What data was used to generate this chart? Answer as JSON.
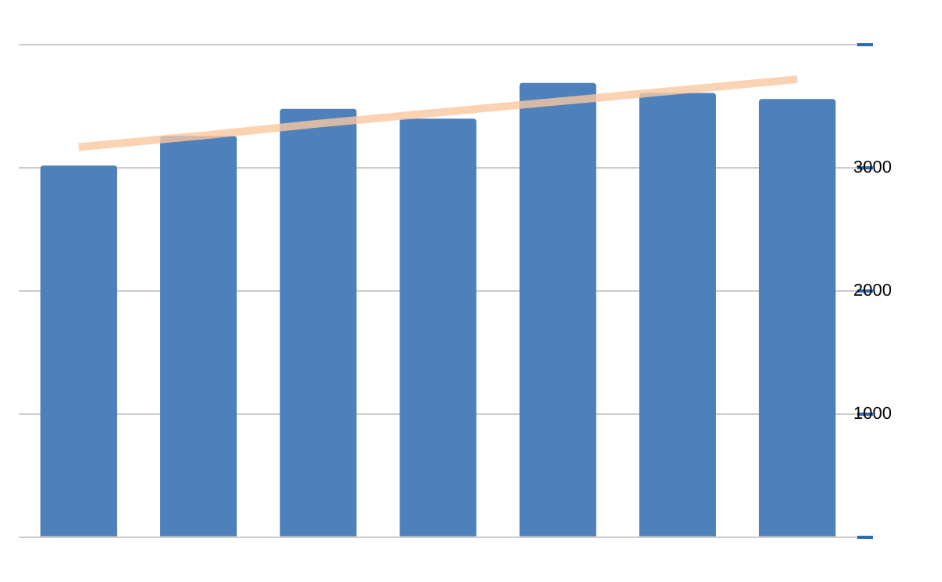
{
  "chart_data": {
    "type": "bar",
    "categories": [
      null,
      null,
      null,
      null,
      null,
      null,
      null
    ],
    "series": [
      {
        "color": "#4e80bc",
        "values": [
          3020,
          3260,
          3480,
          3400,
          3690,
          3610,
          3560
        ]
      },
      {
        "type": "line",
        "color": "#fac8a0",
        "values": [
          3170,
          3260,
          3360,
          3450,
          3540,
          3630,
          3720
        ]
      }
    ],
    "ylim": [
      0,
      4000
    ],
    "yticks": [
      {
        "value": 0,
        "label": null
      },
      1000,
      2000,
      3000,
      {
        "value": 4000,
        "label": null
      }
    ],
    "grid": "y",
    "legend": false,
    "tick_labels": "y"
  }
}
